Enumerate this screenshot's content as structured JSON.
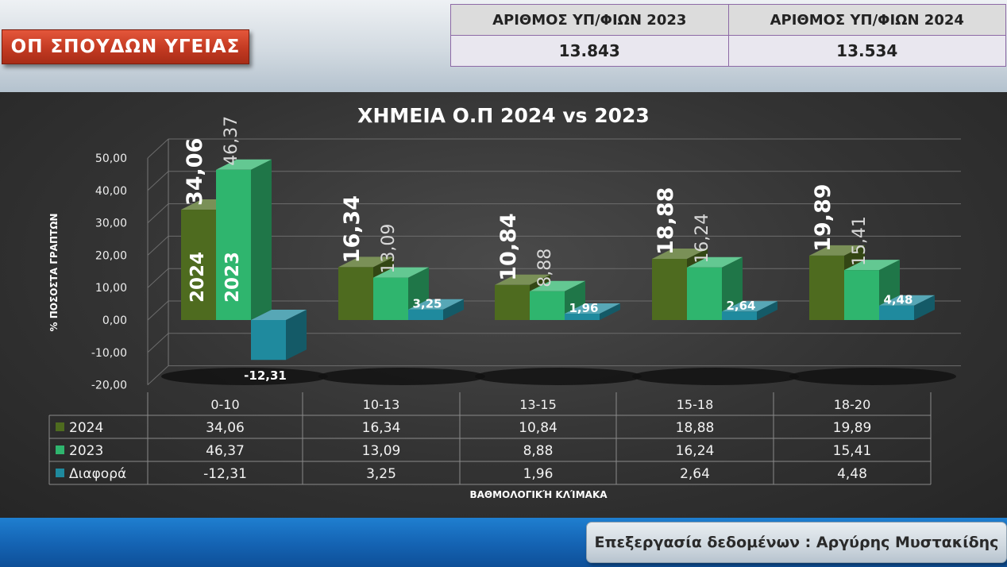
{
  "header": {
    "badge": "ΟΠ ΣΠΟΥΔΩΝ ΥΓΕΙΑΣ",
    "stats": [
      {
        "label": "ΑΡΙΘΜΟΣ ΥΠ/ΦΙΩΝ 2023",
        "value": "13.843"
      },
      {
        "label": "ΑΡΙΘΜΟΣ ΥΠ/ΦΙΩΝ 2024",
        "value": "13.534"
      }
    ]
  },
  "footer": {
    "credit": "Επεξεργασία δεδομένων : Αργύρης Μυστακίδης"
  },
  "colors": {
    "s2024": "#4e6b1f",
    "s2023": "#2fb56e",
    "diff": "#1f8a9e",
    "background": "#333333"
  },
  "chart_data": {
    "type": "bar",
    "title": "ΧΗΜΕΙΑ Ο.Π 2024 vs 2023",
    "ylabel": "% ΠΟΣΟΣΤΑ ΓΡΑΠΤΩΝ",
    "xlabel": "ΒΑΘΜΟΛΟΓΙΚΉ ΚΛΊΜΑΚΑ",
    "ylim": [
      -20,
      50
    ],
    "yticks": [
      "50,00",
      "40,00",
      "30,00",
      "20,00",
      "10,00",
      "0,00",
      "-10,00",
      "-20,00"
    ],
    "categories": [
      "0-10",
      "10-13",
      "13-15",
      "15-18",
      "18-20"
    ],
    "series": [
      {
        "name": "2024",
        "values": [
          34.06,
          16.34,
          10.84,
          18.88,
          19.89
        ],
        "labels": [
          "34,06",
          "16,34",
          "10,84",
          "18,88",
          "19,89"
        ]
      },
      {
        "name": "2023",
        "values": [
          46.37,
          13.09,
          8.88,
          16.24,
          15.41
        ],
        "labels": [
          "46,37",
          "13,09",
          "8,88",
          "16,24",
          "15,41"
        ]
      },
      {
        "name": "Διαφορά",
        "values": [
          -12.31,
          3.25,
          1.96,
          2.64,
          4.48
        ],
        "labels": [
          "-12,31",
          "3,25",
          "1,96",
          "2,64",
          "4,48"
        ]
      }
    ],
    "in_bar_labels": [
      "2024",
      "2023"
    ],
    "grid": true,
    "legend": "data-table"
  }
}
